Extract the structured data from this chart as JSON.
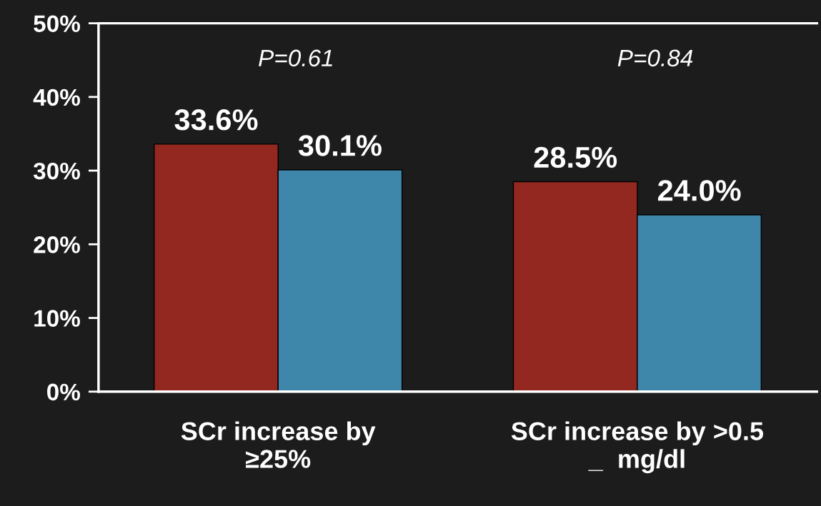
{
  "chart_data": {
    "type": "bar",
    "categories": [
      "SCr increase by\n≥25%",
      "SCr increase by >0.5\n_  mg/dl"
    ],
    "series": [
      {
        "color": "#922820",
        "values": [
          33.6,
          28.5
        ]
      },
      {
        "color": "#3f87aa",
        "values": [
          30.1,
          24.0
        ]
      }
    ],
    "value_labels": [
      [
        "33.6%",
        "28.5%"
      ],
      [
        "30.1%",
        "24.0%"
      ]
    ],
    "annotations": [
      "P=0.61",
      "P=0.84"
    ],
    "ylim": [
      0,
      50
    ],
    "yticks": [
      {
        "value": 0,
        "label": "0%"
      },
      {
        "value": 10,
        "label": "10%"
      },
      {
        "value": 20,
        "label": "20%"
      },
      {
        "value": 30,
        "label": "30%"
      },
      {
        "value": 40,
        "label": "40%"
      },
      {
        "value": 50,
        "label": "50%"
      }
    ],
    "grid": false,
    "legend": false
  }
}
